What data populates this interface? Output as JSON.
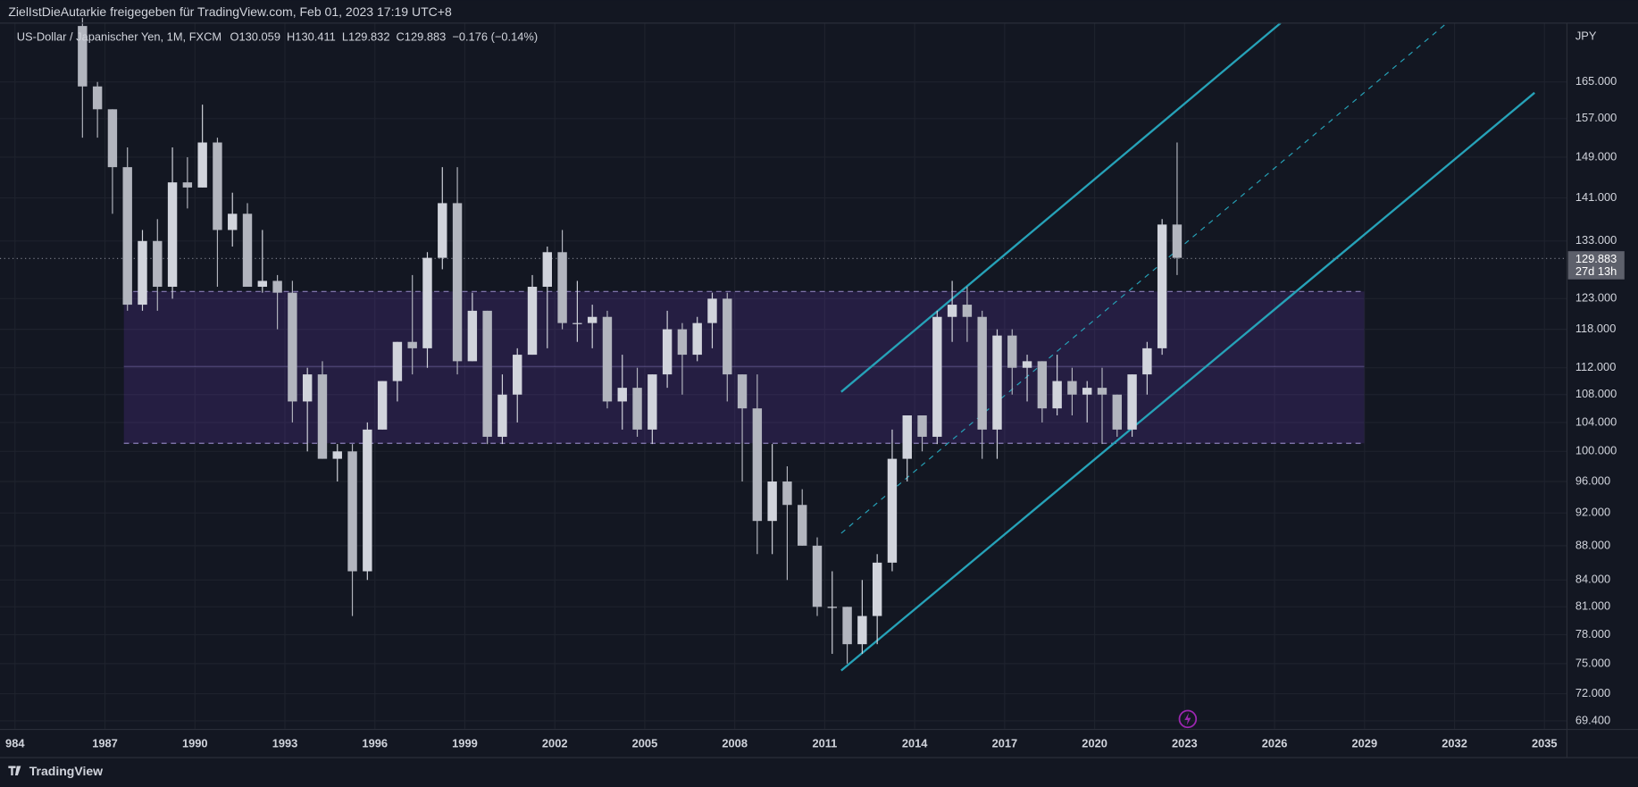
{
  "chart_data": {
    "type": "candlestick",
    "header": "ZielIstDieAutarkie freigegeben für TradingView.com, Feb 01, 2023 17:19 UTC+8",
    "title": "US-Dollar / Japanischer Yen, 1M, FXCM",
    "ohlc_legend": [
      "O130.059",
      "H130.411",
      "L129.832",
      "C129.883",
      "−0.176 (−0.14%)"
    ],
    "y_axis_label": "JPY",
    "footer": "TradingView",
    "last_price": 129.883,
    "countdown": "27d 13h",
    "log_scale": true,
    "grid": true,
    "up_color": "#d1d4dc",
    "down_color": "#b2b5be",
    "xlim": [
      1983.5,
      2035.75
    ],
    "xticks": [
      {
        "value": 1984,
        "label": "984"
      },
      1987,
      1990,
      1993,
      1996,
      1999,
      2002,
      2005,
      2008,
      2011,
      2014,
      2017,
      2020,
      2023,
      2026,
      2029,
      2032,
      2035
    ],
    "ylim": [
      68.6,
      178.7
    ],
    "yticks": [
      {
        "value": 165,
        "label": "165.000"
      },
      {
        "value": 157,
        "label": "157.000"
      },
      {
        "value": 149,
        "label": "149.000"
      },
      {
        "value": 141,
        "label": "141.000"
      },
      {
        "value": 133,
        "label": "133.000"
      },
      {
        "value": 123,
        "label": "123.000"
      },
      {
        "value": 118,
        "label": "118.000"
      },
      {
        "value": 112,
        "label": "112.000"
      },
      {
        "value": 108,
        "label": "108.000"
      },
      {
        "value": 104,
        "label": "104.000"
      },
      {
        "value": 100,
        "label": "100.000"
      },
      {
        "value": 96,
        "label": "96.000"
      },
      {
        "value": 92,
        "label": "92.000"
      },
      {
        "value": 88,
        "label": "88.000"
      },
      {
        "value": 84,
        "label": "84.000"
      },
      {
        "value": 81,
        "label": "81.000"
      },
      {
        "value": 78,
        "label": "78.000"
      },
      {
        "value": 75,
        "label": "75.000"
      },
      {
        "value": 72,
        "label": "72.000"
      },
      {
        "value": 69.4,
        "label": "69.400"
      }
    ],
    "x": [
      1986.25,
      1986.75,
      1987.25,
      1987.75,
      1988.25,
      1988.75,
      1989.25,
      1989.75,
      1990.25,
      1990.75,
      1991.25,
      1991.75,
      1992.25,
      1992.75,
      1993.25,
      1993.75,
      1994.25,
      1994.75,
      1995.25,
      1995.75,
      1996.25,
      1996.75,
      1997.25,
      1997.75,
      1998.25,
      1998.75,
      1999.25,
      1999.75,
      2000.25,
      2000.75,
      2001.25,
      2001.75,
      2002.25,
      2002.75,
      2003.25,
      2003.75,
      2004.25,
      2004.75,
      2005.25,
      2005.75,
      2006.25,
      2006.75,
      2007.25,
      2007.75,
      2008.25,
      2008.75,
      2009.25,
      2009.75,
      2010.25,
      2010.75,
      2011.25,
      2011.75,
      2012.25,
      2012.75,
      2013.25,
      2013.75,
      2014.25,
      2014.75,
      2015.25,
      2015.75,
      2016.25,
      2016.75,
      2017.25,
      2017.75,
      2018.25,
      2018.75,
      2019.25,
      2019.75,
      2020.25,
      2020.75,
      2021.25,
      2021.75,
      2022.25,
      2022.75
    ],
    "open": [
      178,
      164,
      159,
      147,
      122,
      133,
      125,
      144,
      143,
      152,
      135,
      138,
      125,
      126,
      124,
      107,
      111,
      99,
      100,
      85,
      103,
      110,
      116,
      115,
      130,
      140,
      113,
      121,
      102,
      108,
      114,
      125,
      131,
      119,
      119,
      120,
      107,
      109,
      103,
      111,
      118,
      114,
      119,
      123,
      111,
      106,
      91,
      96,
      93,
      88,
      81,
      81,
      77,
      80,
      86,
      99,
      105,
      102,
      120,
      122,
      120,
      103,
      117,
      112,
      113,
      106,
      110,
      108,
      109,
      108,
      103,
      111,
      115,
      136
    ],
    "high": [
      180,
      165,
      159,
      151,
      135,
      137,
      151,
      149,
      160,
      153,
      142,
      140,
      135,
      127,
      126,
      112,
      113,
      101,
      101,
      104,
      110,
      116,
      127,
      131,
      147,
      147,
      124,
      121,
      111,
      115,
      127,
      132,
      135,
      126,
      122,
      121,
      114,
      112,
      111,
      121,
      119,
      120,
      124,
      124,
      111,
      111,
      101,
      98,
      95,
      89,
      85,
      81,
      84,
      87,
      103,
      105,
      105,
      121,
      126,
      125,
      121,
      118,
      118,
      114,
      113,
      114,
      112,
      110,
      112,
      108,
      111,
      116,
      137,
      152
    ],
    "low": [
      153,
      153,
      138,
      121,
      121,
      121,
      123,
      139,
      143,
      125,
      132,
      125,
      124,
      118,
      104,
      100,
      99,
      96,
      80,
      84,
      103,
      107,
      111,
      112,
      128,
      111,
      113,
      101,
      101,
      104,
      114,
      115,
      118,
      116,
      115,
      106,
      103,
      102,
      101,
      109,
      108,
      113,
      115,
      107,
      96,
      87,
      87,
      84,
      88,
      80,
      76,
      75,
      76,
      77,
      85,
      96,
      100,
      101,
      116,
      116,
      99,
      99,
      108,
      107,
      104,
      105,
      105,
      104,
      101,
      102,
      102,
      108,
      114,
      127
    ],
    "close": [
      164,
      159,
      147,
      122,
      133,
      125,
      144,
      143,
      152,
      135,
      138,
      125,
      126,
      124,
      107,
      111,
      99,
      100,
      85,
      103,
      110,
      116,
      115,
      130,
      140,
      113,
      121,
      102,
      108,
      114,
      125,
      131,
      119,
      119,
      120,
      107,
      109,
      103,
      111,
      118,
      114,
      119,
      123,
      111,
      106,
      91,
      96,
      93,
      88,
      81,
      81,
      77,
      80,
      86,
      99,
      105,
      102,
      120,
      122,
      120,
      103,
      117,
      112,
      113,
      106,
      110,
      108,
      109,
      108,
      103,
      111,
      115,
      136,
      130
    ],
    "rectangle": {
      "x": [
        1987.63,
        2028.99
      ],
      "y": [
        101.1,
        124.2
      ],
      "mid": 112.2
    },
    "channel": [
      {
        "x": [
          2011.55,
          2034.67
        ],
        "y": [
          74.3,
          162.6
        ]
      },
      {
        "x": [
          2011.55,
          2026.2
        ],
        "y": [
          108.4,
          178.7
        ]
      },
      {
        "x": [
          2011.55,
          2031.74
        ],
        "y": [
          89.5,
          178.7
        ],
        "dashed": true
      }
    ]
  }
}
